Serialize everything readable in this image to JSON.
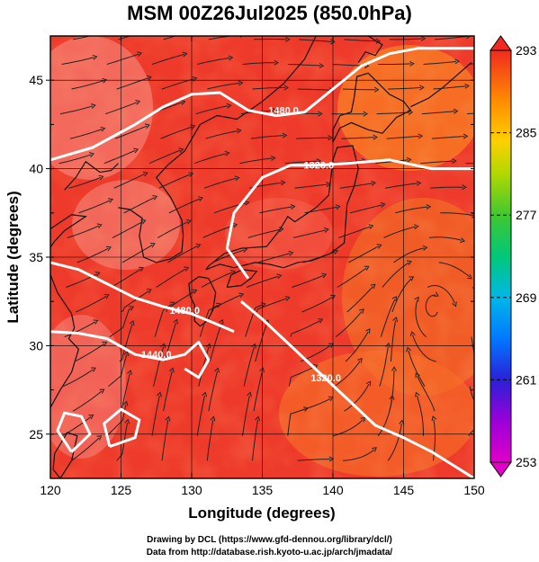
{
  "title": "MSM 00Z26Jul2025 (850.0hPa)",
  "axes": {
    "xlabel": "Longitude (degrees)",
    "ylabel": "Latitude  (degrees)",
    "xlim": [
      120,
      150
    ],
    "ylim": [
      22.5,
      47.5
    ],
    "xticks": [
      {
        "value": 120,
        "label": "120"
      },
      {
        "value": 125,
        "label": "125"
      },
      {
        "value": 130,
        "label": "130"
      },
      {
        "value": 135,
        "label": "135"
      },
      {
        "value": 140,
        "label": "140"
      },
      {
        "value": 145,
        "label": "145"
      },
      {
        "value": 150,
        "label": "150"
      }
    ],
    "yticks": [
      {
        "value": 25,
        "label": "25"
      },
      {
        "value": 30,
        "label": "30"
      },
      {
        "value": 35,
        "label": "35"
      },
      {
        "value": 40,
        "label": "40"
      },
      {
        "value": 45,
        "label": "45"
      }
    ]
  },
  "colorbar": {
    "min": 253,
    "max": 293,
    "ticks": [
      {
        "value": 253,
        "label": "253"
      },
      {
        "value": 261,
        "label": "261"
      },
      {
        "value": 269,
        "label": "269"
      },
      {
        "value": 277,
        "label": "277"
      },
      {
        "value": 285,
        "label": "285"
      },
      {
        "value": 293,
        "label": "293"
      }
    ]
  },
  "contours": [
    {
      "label": "1480.0",
      "points": [
        [
          120,
          40.5
        ],
        [
          123,
          41.2
        ],
        [
          126,
          42.5
        ],
        [
          128,
          43.5
        ],
        [
          130,
          44.2
        ],
        [
          132,
          44.3
        ],
        [
          134,
          43.3
        ],
        [
          136,
          43
        ],
        [
          138,
          43.2
        ],
        [
          140,
          44.5
        ],
        [
          142,
          45.8
        ],
        [
          144,
          46.5
        ],
        [
          146,
          46.8
        ],
        [
          150,
          46.8
        ]
      ],
      "label_at": [
        136.5,
        43.3
      ]
    },
    {
      "label": "1320.0",
      "points": [
        [
          150,
          40
        ],
        [
          147,
          40
        ],
        [
          144,
          40.5
        ],
        [
          141,
          40.3
        ],
        [
          139,
          40.2
        ],
        [
          137,
          40.2
        ],
        [
          135,
          39.5
        ],
        [
          133,
          37.5
        ],
        [
          132.5,
          35.5
        ],
        [
          134,
          33.8
        ]
      ],
      "label_at": [
        139,
        40.2
      ]
    },
    {
      "label": "1480.0",
      "points": [
        [
          120,
          34.7
        ],
        [
          122,
          34.3
        ],
        [
          124,
          33.5
        ],
        [
          126,
          32.7
        ],
        [
          128,
          32.2
        ],
        [
          130,
          31.8
        ],
        [
          131.5,
          31.3
        ],
        [
          133,
          30.8
        ]
      ],
      "label_at": [
        129.5,
        32
      ]
    },
    {
      "label": "1320.0",
      "points": [
        [
          133.5,
          32.5
        ],
        [
          135,
          31.5
        ],
        [
          137,
          30
        ],
        [
          139,
          28.5
        ],
        [
          141,
          27
        ],
        [
          143,
          25.5
        ],
        [
          145,
          24.8
        ],
        [
          147,
          24
        ],
        [
          149,
          23
        ],
        [
          150,
          22.5
        ]
      ],
      "label_at": [
        139.5,
        28.2
      ]
    },
    {
      "label": "1440.0",
      "points": [
        [
          120,
          30.8
        ],
        [
          122,
          30.7
        ],
        [
          124,
          30.4
        ],
        [
          126,
          29.5
        ],
        [
          128,
          29.2
        ],
        [
          129.5,
          29.5
        ],
        [
          130.5,
          30.2
        ],
        [
          131.2,
          29.2
        ],
        [
          130.5,
          28.2
        ],
        [
          129.5,
          28.7
        ]
      ],
      "label_at": [
        127.5,
        29.5
      ]
    },
    {
      "label": "",
      "points": [
        [
          121.5,
          24
        ],
        [
          122.8,
          25
        ],
        [
          122.2,
          26
        ],
        [
          121,
          26.2
        ],
        [
          120.5,
          25.2
        ],
        [
          121.5,
          24
        ]
      ],
      "label_at": null
    },
    {
      "label": "",
      "points": [
        [
          124.2,
          24.3
        ],
        [
          126,
          24.8
        ],
        [
          126.3,
          25.8
        ],
        [
          125,
          26.4
        ],
        [
          123.8,
          25.6
        ],
        [
          124.2,
          24.3
        ]
      ],
      "label_at": null
    }
  ],
  "credits": {
    "line1": "Drawing by DCL (https://www.gfd-dennou.org/library/dcl/)",
    "line2": "Data from http://database.rish.kyoto-u.ac.jp/arch/jmadata/"
  },
  "colors": {
    "field_base": "#ee3a2a",
    "field_warm": "#f55a28",
    "field_hot": "#f47a68",
    "streamline": "#222222",
    "contour": "#ffffff",
    "coast": "#111111"
  }
}
